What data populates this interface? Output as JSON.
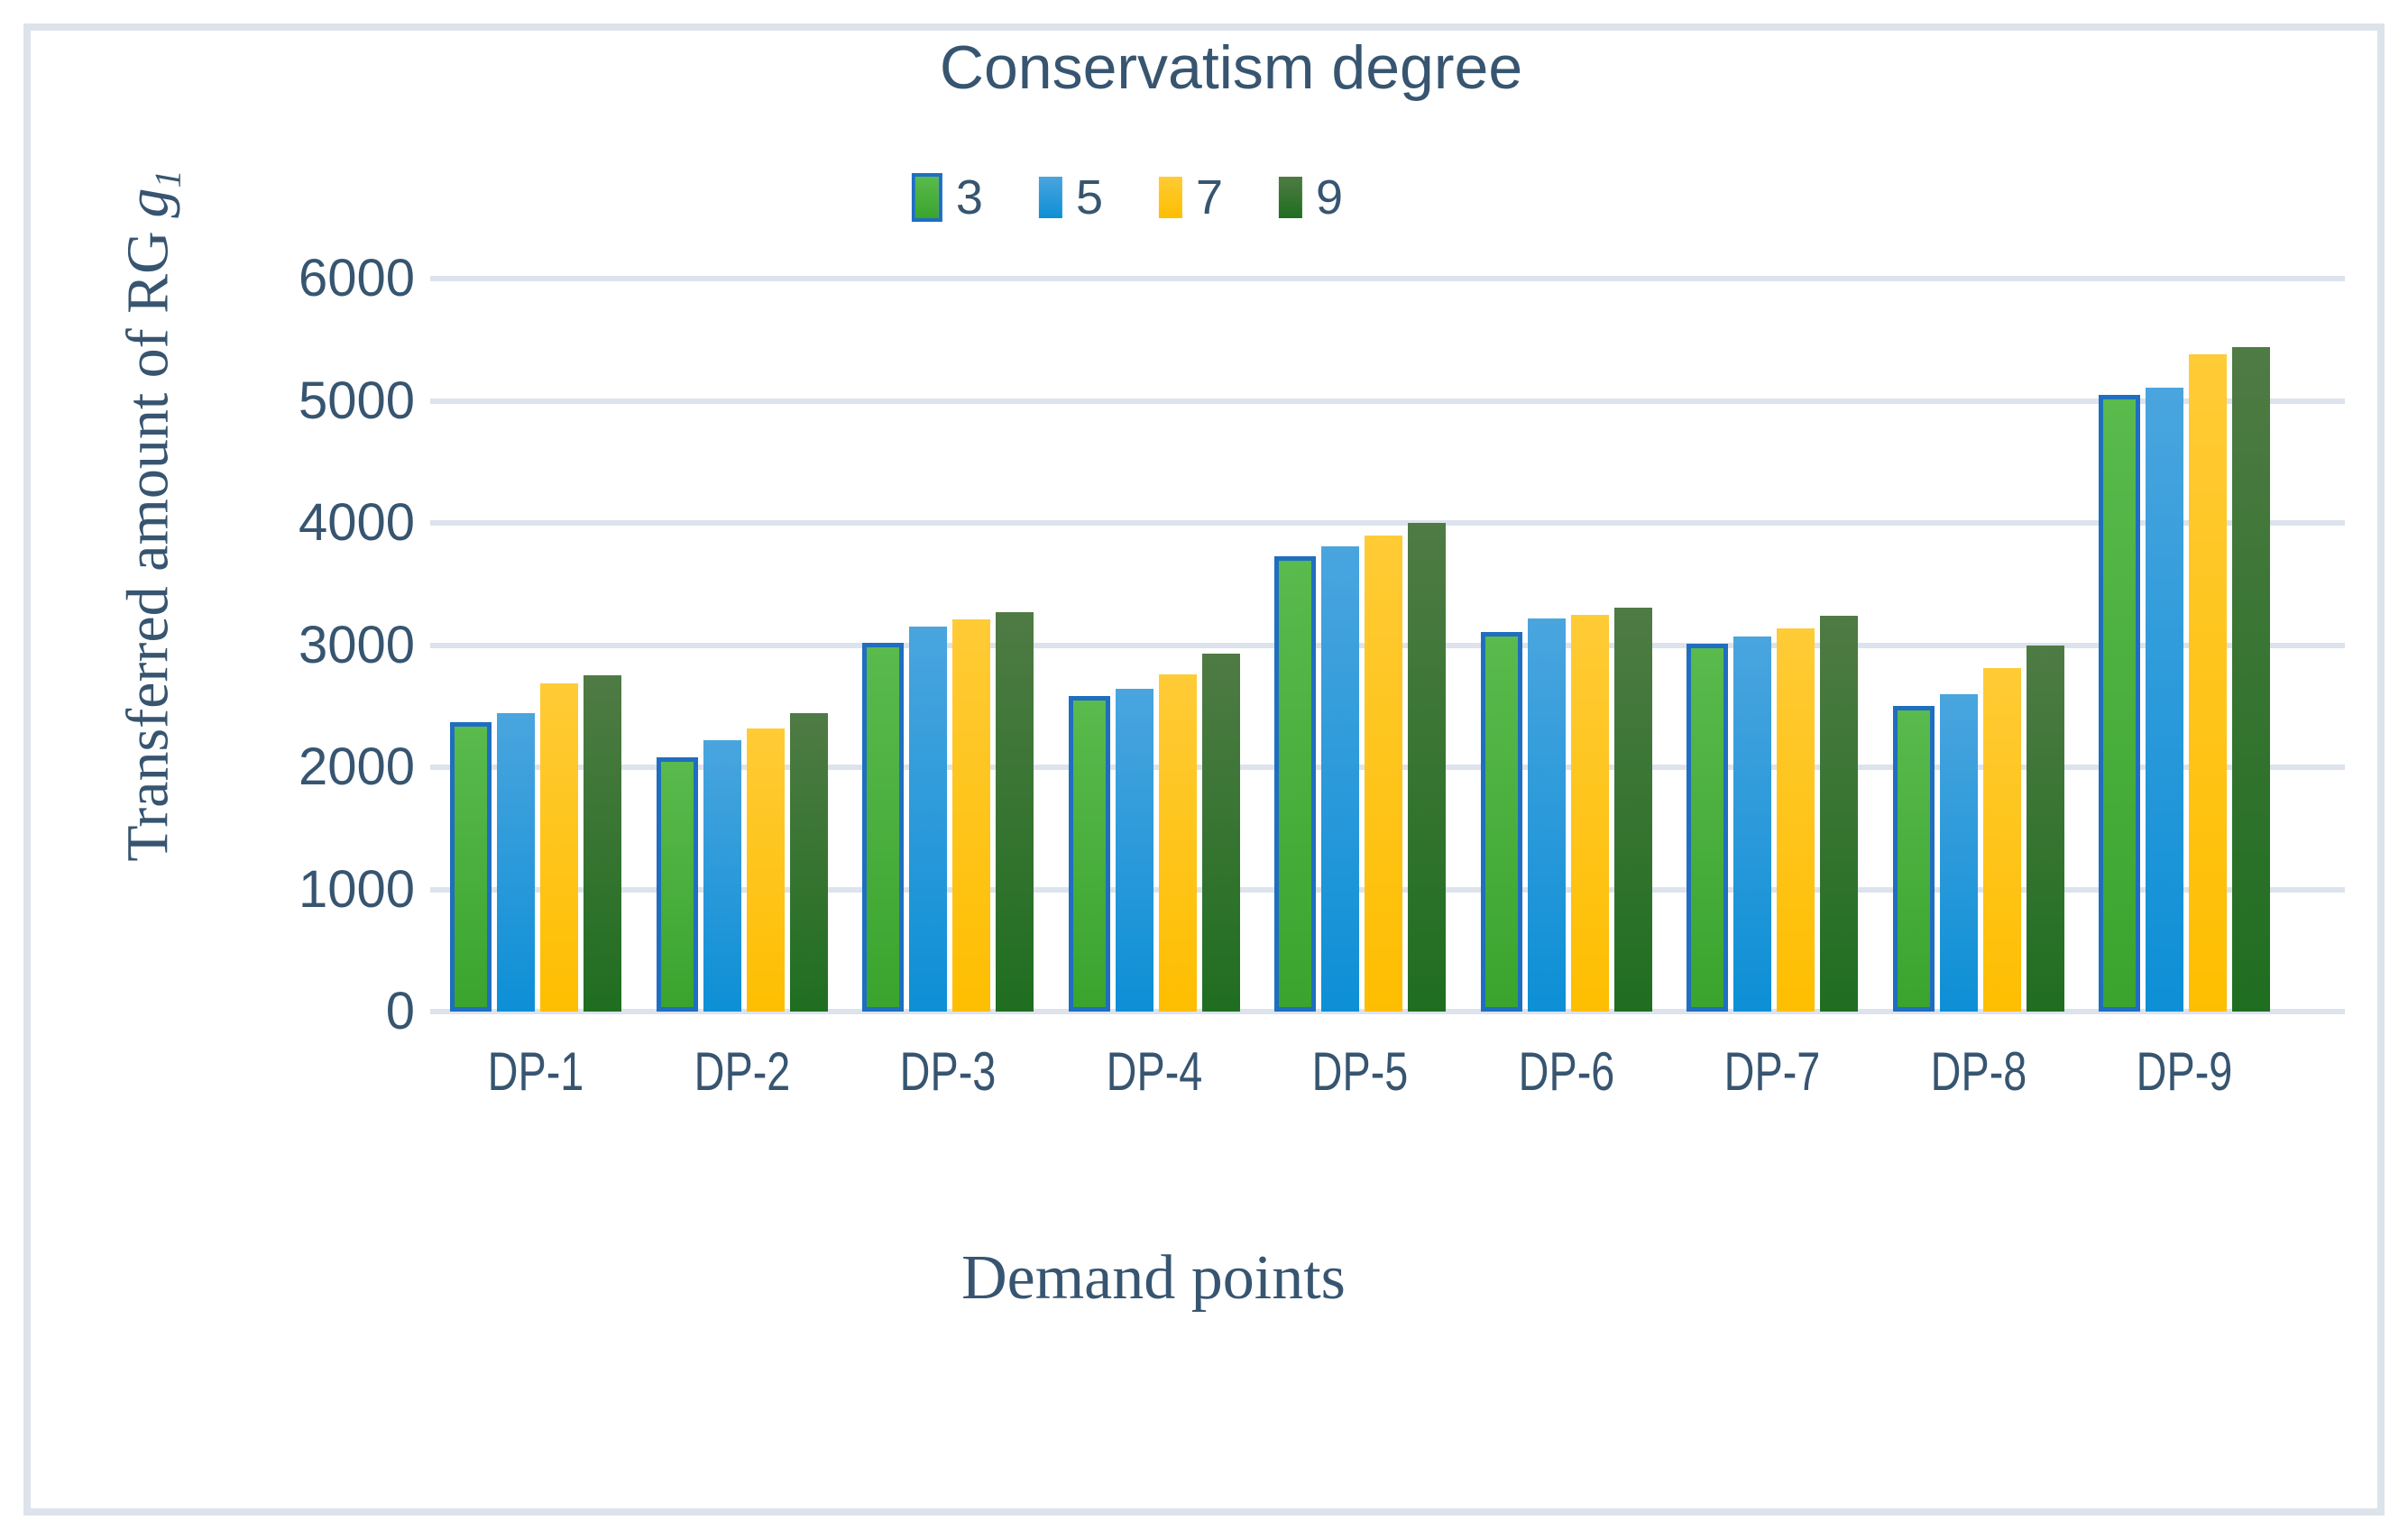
{
  "title": "Conservatism degree",
  "colors": {
    "text": "#375570",
    "gridline": "#DCE3ED",
    "frame_border": "#DDE3EB",
    "background": "#FFFFFF",
    "series3_border": "#1F6EC0"
  },
  "y_axis": {
    "title_prefix": "Transferred amount of RG",
    "title_var": "g",
    "title_sub": "1",
    "min": 0,
    "max": 6000,
    "step": 1000,
    "tick_labels": [
      "6000",
      "5000",
      "4000",
      "3000",
      "2000",
      "1000",
      "0"
    ]
  },
  "x_axis": {
    "title": "Demand points",
    "categories": [
      "DP-1",
      "DP-2",
      "DP-3",
      "DP-4",
      "DP-5",
      "DP-6",
      "DP-7",
      "DP-8",
      "DP-9"
    ]
  },
  "legend": {
    "items": [
      "3",
      "5",
      "7",
      "9"
    ]
  },
  "chart_data": {
    "type": "bar",
    "title": "Conservatism degree",
    "xlabel": "Demand points",
    "ylabel": "Transferred amount of RG g1",
    "ylim": [
      0,
      6000
    ],
    "ytick_step": 1000,
    "grid": true,
    "legend_position": "top",
    "categories": [
      "DP-1",
      "DP-2",
      "DP-3",
      "DP-4",
      "DP-5",
      "DP-6",
      "DP-7",
      "DP-8",
      "DP-9"
    ],
    "series": [
      {
        "name": "3",
        "color_top": "#5ABA4D",
        "color_bottom": "#3AA42E",
        "border_color": "#1F6EC0",
        "values": [
          2370,
          2080,
          3020,
          2580,
          3730,
          3110,
          3010,
          2500,
          5050
        ]
      },
      {
        "name": "5",
        "color_top": "#4AA5DE",
        "color_bottom": "#0D8FD6",
        "values": [
          2440,
          2220,
          3150,
          2640,
          3810,
          3220,
          3070,
          2600,
          5110
        ]
      },
      {
        "name": "7",
        "color_top": "#FFCB36",
        "color_bottom": "#FEBE00",
        "values": [
          2690,
          2320,
          3210,
          2760,
          3900,
          3250,
          3140,
          2810,
          5380
        ]
      },
      {
        "name": "9",
        "color_top": "#4F7B44",
        "color_bottom": "#1F6E20",
        "values": [
          2750,
          2440,
          3270,
          2930,
          4000,
          3310,
          3240,
          3000,
          5440
        ]
      }
    ]
  }
}
